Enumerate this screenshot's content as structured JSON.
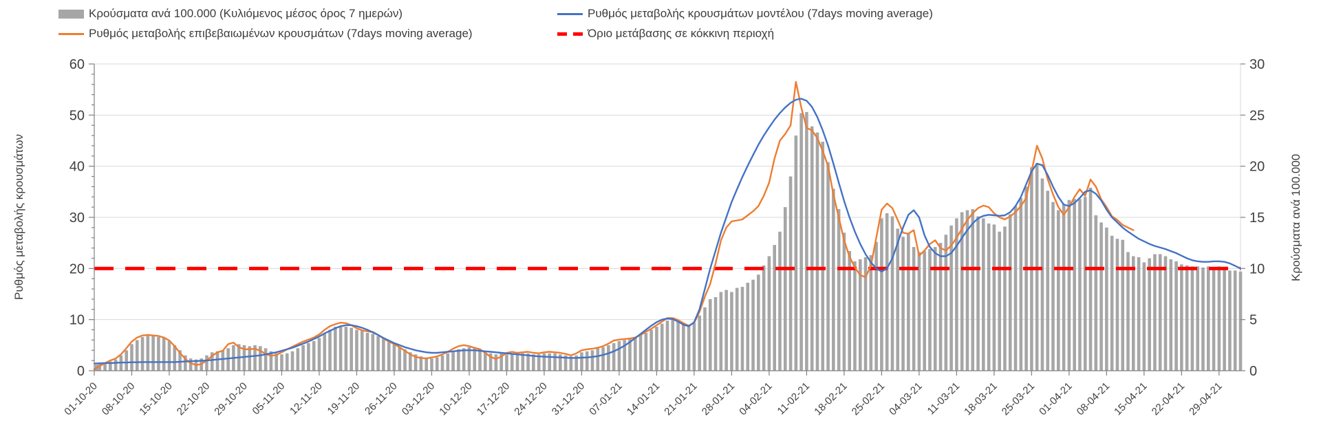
{
  "legend": {
    "items": [
      {
        "label": "Κρούσματα ανά 100.000 (Κυλιόμενος μέσος όρος 7 ημερών)",
        "swatch": "bar",
        "color": "#A6A6A6"
      },
      {
        "label": "Ρυθμός μεταβολής κρουσμάτων μοντέλου (7days moving average)",
        "swatch": "line",
        "color": "#4472C4"
      },
      {
        "label": "Ρυθμός μεταβολής επιβεβαιωμένων κρουσμάτων (7days moving average)",
        "swatch": "line",
        "color": "#ED7D31"
      },
      {
        "label": "Όριο μετάβασης σε κόκκινη περιοχή",
        "swatch": "dash",
        "color": "#FF0000"
      }
    ]
  },
  "chart_data": {
    "type": "bar",
    "subtype": "combo-bar-lines",
    "grid": true,
    "legend_position": "top",
    "left_axis": {
      "label": "Ρυθμός μεταβολής κρουσμάτων",
      "min": 0,
      "max": 60,
      "tick_step": 10,
      "tick_labels": [
        "0",
        "10",
        "20",
        "30",
        "40",
        "50",
        "60"
      ]
    },
    "right_axis": {
      "label": "Κρούσματα ανά 100.000",
      "min": 0,
      "max": 30,
      "tick_step": 5,
      "tick_labels": [
        "0",
        "5",
        "10",
        "15",
        "20",
        "25",
        "30"
      ]
    },
    "x": {
      "n_points": 215,
      "days_per_tick": 7,
      "tick_labels": [
        "01-10-20",
        "08-10-20",
        "15-10-20",
        "22-10-20",
        "29-10-20",
        "05-11-20",
        "12-11-20",
        "19-11-20",
        "26-11-20",
        "03-12-20",
        "10-12-20",
        "17-12-20",
        "24-12-20",
        "31-12-20",
        "07-01-21",
        "14-01-21",
        "21-01-21",
        "28-01-21",
        "04-02-21",
        "11-02-21",
        "18-02-21",
        "25-02-21",
        "04-03-21",
        "11-03-21",
        "18-03-21",
        "25-03-21",
        "01-04-21",
        "08-04-21",
        "15-04-21",
        "22-04-21",
        "29-04-21"
      ]
    },
    "threshold": {
      "name": "Όριο μετάβασης σε κόκκινη περιοχή",
      "axis": "left",
      "value": 20,
      "color": "#FF0000"
    },
    "series": [
      {
        "name": "Κρούσματα ανά 100.000 (Κυλιόμενος μέσος όρος 7 ημερών)",
        "type": "bar",
        "axis": "right",
        "color": "#A6A6A6",
        "values": [
          0.6,
          0.7,
          0.8,
          0.9,
          1.1,
          1.5,
          2.0,
          2.6,
          3.0,
          3.3,
          3.4,
          3.4,
          3.3,
          3.2,
          2.9,
          2.5,
          2.0,
          1.5,
          1.2,
          1.1,
          1.2,
          1.5,
          1.8,
          1.9,
          2.0,
          2.2,
          2.5,
          2.6,
          2.5,
          2.4,
          2.5,
          2.4,
          2.2,
          1.9,
          1.7,
          1.6,
          1.7,
          1.9,
          2.2,
          2.5,
          2.7,
          2.9,
          3.2,
          3.6,
          4.0,
          4.3,
          4.4,
          4.3,
          4.2,
          4.0,
          3.9,
          3.7,
          3.6,
          3.4,
          3.1,
          2.8,
          2.6,
          2.3,
          2.1,
          1.8,
          1.6,
          1.4,
          1.3,
          1.2,
          1.3,
          1.5,
          1.7,
          1.9,
          2.1,
          2.2,
          2.3,
          2.2,
          2.1,
          1.9,
          1.7,
          1.6,
          1.7,
          1.6,
          1.6,
          1.6,
          1.7,
          1.7,
          1.6,
          1.6,
          1.7,
          1.7,
          1.7,
          1.6,
          1.5,
          1.4,
          1.5,
          1.8,
          1.9,
          2.0,
          2.2,
          2.3,
          2.5,
          2.7,
          2.9,
          3.0,
          3.2,
          3.3,
          3.5,
          3.7,
          4.0,
          4.3,
          4.6,
          4.9,
          5.0,
          4.8,
          4.6,
          4.5,
          4.7,
          5.4,
          6.2,
          7.0,
          7.2,
          7.7,
          7.9,
          7.7,
          8.1,
          8.2,
          8.6,
          8.9,
          9.4,
          10.3,
          11.2,
          12.3,
          13.6,
          16.0,
          19.0,
          23.0,
          25.2,
          25.3,
          23.9,
          23.3,
          22.4,
          20.4,
          17.8,
          15.8,
          13.5,
          11.7,
          10.7,
          10.9,
          11.1,
          11.3,
          12.6,
          14.9,
          15.4,
          15.1,
          13.9,
          13.1,
          13.4,
          12.1,
          11.6,
          11.7,
          11.9,
          12.1,
          12.5,
          13.3,
          14.2,
          14.9,
          15.5,
          15.7,
          15.8,
          15.1,
          14.9,
          14.4,
          14.3,
          13.6,
          14.1,
          15.3,
          16.1,
          16.9,
          18.0,
          19.9,
          20.3,
          18.8,
          17.6,
          16.5,
          15.7,
          16.3,
          16.7,
          16.8,
          16.8,
          17.0,
          17.9,
          15.2,
          14.5,
          14.0,
          13.2,
          12.9,
          12.8,
          11.6,
          11.2,
          11.1,
          10.6,
          11.0,
          11.4,
          11.4,
          11.2,
          10.9,
          10.7,
          10.4,
          10.3,
          10.2,
          10.2,
          10.1,
          10.2,
          10.1,
          10.2,
          9.9,
          9.8,
          9.8,
          9.7
        ]
      },
      {
        "name": "Ρυθμός μεταβολής επιβεβαιωμένων κρουσμάτων (7days moving average)",
        "type": "line",
        "axis": "left",
        "color": "#ED7D31",
        "values": [
          0.3,
          0.9,
          1.5,
          2.0,
          2.4,
          3.2,
          4.4,
          5.7,
          6.5,
          6.9,
          7.0,
          6.9,
          6.8,
          6.5,
          5.9,
          4.8,
          3.5,
          2.3,
          1.5,
          1.1,
          1.3,
          2.0,
          2.9,
          3.6,
          3.9,
          5.2,
          5.5,
          4.6,
          4.2,
          4.2,
          4.3,
          3.9,
          3.3,
          2.9,
          3.1,
          3.6,
          4.2,
          4.7,
          5.2,
          5.7,
          6.1,
          6.5,
          7.1,
          8.0,
          8.7,
          9.1,
          9.4,
          9.3,
          8.9,
          8.3,
          7.9,
          7.7,
          7.6,
          7.0,
          6.3,
          5.7,
          5.2,
          4.6,
          3.9,
          3.2,
          2.7,
          2.5,
          2.4,
          2.6,
          2.8,
          3.2,
          3.7,
          4.3,
          4.8,
          5.0,
          4.8,
          4.5,
          4.2,
          3.5,
          2.7,
          2.3,
          2.8,
          3.5,
          3.7,
          3.5,
          3.6,
          3.7,
          3.5,
          3.4,
          3.6,
          3.7,
          3.6,
          3.5,
          3.3,
          3.0,
          3.4,
          4.0,
          4.2,
          4.3,
          4.5,
          4.8,
          5.3,
          5.9,
          6.1,
          6.2,
          6.3,
          6.5,
          7.0,
          7.6,
          8.2,
          8.9,
          9.6,
          10.3,
          10.3,
          9.9,
          9.3,
          8.8,
          9.4,
          11.5,
          14.5,
          17.0,
          21.0,
          25.5,
          28.0,
          29.2,
          29.4,
          29.6,
          30.4,
          31.2,
          32.2,
          34.2,
          36.8,
          41.5,
          45.0,
          46.3,
          48.0,
          56.5,
          51.5,
          47.5,
          47.0,
          45.5,
          43.0,
          40.0,
          34.5,
          30.0,
          25.5,
          22.3,
          20.2,
          18.7,
          18.3,
          20.5,
          26.0,
          31.5,
          32.7,
          31.8,
          29.5,
          27.0,
          26.8,
          27.5,
          22.5,
          23.5,
          24.8,
          25.5,
          24.0,
          23.5,
          24.5,
          26.0,
          27.8,
          29.5,
          30.8,
          31.8,
          32.3,
          32.0,
          30.8,
          30.0,
          29.6,
          30.2,
          31.0,
          32.2,
          33.8,
          39.0,
          44.0,
          41.5,
          37.5,
          34.5,
          32.0,
          30.5,
          32.0,
          34.0,
          35.5,
          34.2,
          37.4,
          36.0,
          33.5,
          32.0,
          30.2,
          29.5,
          28.5,
          28.0,
          27.5,
          null,
          null,
          null,
          null,
          null,
          null,
          null,
          null,
          null,
          null,
          null,
          null,
          null,
          null,
          null,
          null,
          null,
          null,
          null,
          null
        ]
      },
      {
        "name": "Ρυθμός μεταβολής κρουσμάτων μοντέλου (7days moving average)",
        "type": "line",
        "axis": "left",
        "color": "#4472C4",
        "values": [
          1.4,
          1.45,
          1.5,
          1.5,
          1.55,
          1.6,
          1.6,
          1.65,
          1.65,
          1.7,
          1.7,
          1.7,
          1.7,
          1.7,
          1.7,
          1.7,
          1.75,
          1.8,
          1.85,
          1.9,
          1.95,
          2.0,
          2.1,
          2.2,
          2.3,
          2.4,
          2.5,
          2.6,
          2.7,
          2.8,
          2.9,
          3.0,
          3.2,
          3.4,
          3.6,
          3.9,
          4.2,
          4.5,
          4.9,
          5.3,
          5.7,
          6.2,
          6.7,
          7.3,
          7.8,
          8.3,
          8.7,
          8.9,
          8.9,
          8.7,
          8.4,
          8.0,
          7.5,
          7.0,
          6.4,
          5.9,
          5.4,
          5.0,
          4.6,
          4.3,
          4.0,
          3.8,
          3.6,
          3.5,
          3.5,
          3.6,
          3.7,
          3.8,
          3.9,
          4.0,
          4.0,
          4.0,
          3.9,
          3.8,
          3.7,
          3.6,
          3.5,
          3.4,
          3.3,
          3.2,
          3.1,
          3.0,
          2.9,
          2.8,
          2.75,
          2.7,
          2.65,
          2.6,
          2.55,
          2.5,
          2.5,
          2.55,
          2.6,
          2.7,
          2.85,
          3.1,
          3.4,
          3.8,
          4.3,
          4.9,
          5.6,
          6.4,
          7.2,
          8.0,
          8.8,
          9.5,
          10.0,
          10.2,
          10.1,
          9.6,
          9.0,
          8.7,
          9.5,
          12.0,
          16.0,
          20.0,
          23.5,
          27.0,
          30.0,
          33.0,
          35.5,
          37.9,
          40.1,
          42.2,
          44.2,
          46.0,
          47.6,
          49.1,
          50.4,
          51.5,
          52.4,
          53.0,
          53.2,
          52.8,
          51.6,
          49.6,
          47.0,
          44.0,
          40.5,
          36.8,
          33.2,
          30.0,
          27.2,
          24.8,
          22.8,
          21.2,
          20.0,
          19.4,
          20.0,
          22.0,
          25.0,
          28.0,
          30.5,
          31.4,
          30.0,
          26.5,
          24.2,
          23.0,
          22.4,
          22.4,
          23.0,
          24.4,
          26.0,
          27.5,
          28.8,
          29.8,
          30.3,
          30.5,
          30.4,
          30.3,
          30.4,
          31.0,
          32.2,
          34.0,
          36.5,
          39.0,
          40.5,
          40.2,
          38.3,
          36.0,
          34.0,
          32.5,
          32.2,
          32.8,
          33.8,
          35.0,
          35.3,
          34.6,
          33.3,
          31.5,
          30.0,
          29.0,
          28.0,
          27.2,
          26.5,
          25.8,
          25.3,
          24.8,
          24.4,
          24.1,
          23.8,
          23.4,
          23.0,
          22.5,
          22.0,
          21.6,
          21.4,
          21.3,
          21.3,
          21.4,
          21.4,
          21.3,
          21.0,
          20.5,
          20.0
        ]
      }
    ],
    "colors": {
      "grid": "#D9D9D9",
      "axis": "#808080",
      "tick_text": "#404040",
      "legend_text": "#3C3C3C",
      "background": "#FFFFFF"
    }
  }
}
